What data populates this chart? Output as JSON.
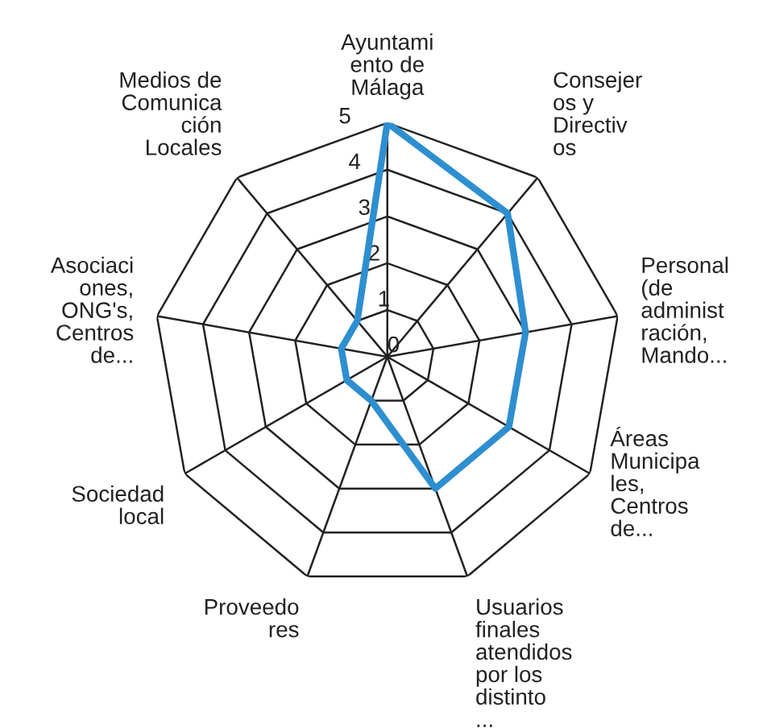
{
  "chart_data": {
    "type": "radar",
    "categories": [
      "Ayuntamiento de Málaga",
      "Consejeros y Directivos",
      "Personal (de administración, Mando...",
      "Áreas Municipales, Centros de...",
      "Usuarios finales atendidos por los distinto...",
      "Proveedores",
      "Sociedad local",
      "Asociaciones, ONG's, Centros de...",
      "Medios de Comunicación Locales"
    ],
    "series": [
      {
        "color": "#2e8fd0",
        "values": [
          5,
          4,
          3,
          3,
          3,
          1,
          1,
          1,
          1
        ]
      }
    ],
    "ylim": [
      0,
      5
    ],
    "yticks": [
      0,
      1,
      2,
      3,
      4,
      5
    ],
    "grid": true,
    "marker": "none",
    "line_style": "solid"
  }
}
